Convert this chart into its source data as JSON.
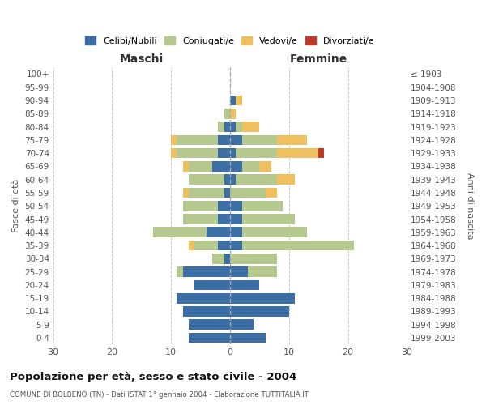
{
  "age_groups": [
    "100+",
    "95-99",
    "90-94",
    "85-89",
    "80-84",
    "75-79",
    "70-74",
    "65-69",
    "60-64",
    "55-59",
    "50-54",
    "45-49",
    "40-44",
    "35-39",
    "30-34",
    "25-29",
    "20-24",
    "15-19",
    "10-14",
    "5-9",
    "0-4"
  ],
  "birth_years": [
    "≤ 1903",
    "1904-1908",
    "1909-1913",
    "1914-1918",
    "1919-1923",
    "1924-1928",
    "1929-1933",
    "1934-1938",
    "1939-1943",
    "1944-1948",
    "1949-1953",
    "1954-1958",
    "1959-1963",
    "1964-1968",
    "1969-1973",
    "1974-1978",
    "1979-1983",
    "1984-1988",
    "1989-1993",
    "1994-1998",
    "1999-2003"
  ],
  "maschi": {
    "celibi": [
      0,
      0,
      0,
      0,
      1,
      2,
      2,
      3,
      1,
      1,
      2,
      2,
      4,
      2,
      1,
      8,
      6,
      9,
      8,
      7,
      7
    ],
    "coniugati": [
      0,
      0,
      0,
      1,
      1,
      7,
      7,
      4,
      6,
      6,
      6,
      6,
      9,
      4,
      2,
      1,
      0,
      0,
      0,
      0,
      0
    ],
    "vedovi": [
      0,
      0,
      0,
      0,
      0,
      1,
      1,
      1,
      0,
      1,
      0,
      0,
      0,
      1,
      0,
      0,
      0,
      0,
      0,
      0,
      0
    ],
    "divorziati": [
      0,
      0,
      0,
      0,
      0,
      0,
      0,
      0,
      0,
      0,
      0,
      0,
      0,
      0,
      0,
      0,
      0,
      0,
      0,
      0,
      0
    ]
  },
  "femmine": {
    "nubili": [
      0,
      0,
      1,
      0,
      1,
      2,
      1,
      2,
      1,
      0,
      2,
      2,
      2,
      2,
      0,
      3,
      5,
      11,
      10,
      4,
      6
    ],
    "coniugate": [
      0,
      0,
      0,
      0,
      1,
      6,
      7,
      3,
      7,
      6,
      7,
      9,
      11,
      19,
      8,
      5,
      0,
      0,
      0,
      0,
      0
    ],
    "vedove": [
      0,
      0,
      1,
      1,
      3,
      5,
      7,
      2,
      3,
      2,
      0,
      0,
      0,
      0,
      0,
      0,
      0,
      0,
      0,
      0,
      0
    ],
    "divorziate": [
      0,
      0,
      0,
      0,
      0,
      0,
      1,
      0,
      0,
      0,
      0,
      0,
      0,
      0,
      0,
      0,
      0,
      0,
      0,
      0,
      0
    ]
  },
  "colors": {
    "celibi": "#3a6ea5",
    "coniugati": "#b5c98e",
    "vedovi": "#f0c060",
    "divorziati": "#c0392b"
  },
  "xlim": 30,
  "title": "Popolazione per età, sesso e stato civile - 2004",
  "subtitle": "COMUNE DI BOLBENO (TN) - Dati ISTAT 1° gennaio 2004 - Elaborazione TUTTITALIA.IT",
  "ylabel_left": "Fasce di età",
  "ylabel_right": "Anni di nascita",
  "legend_labels": [
    "Celibi/Nubili",
    "Coniugati/e",
    "Vedovi/e",
    "Divorziati/e"
  ],
  "maschi_label": "Maschi",
  "femmine_label": "Femmine",
  "background_color": "#ffffff"
}
